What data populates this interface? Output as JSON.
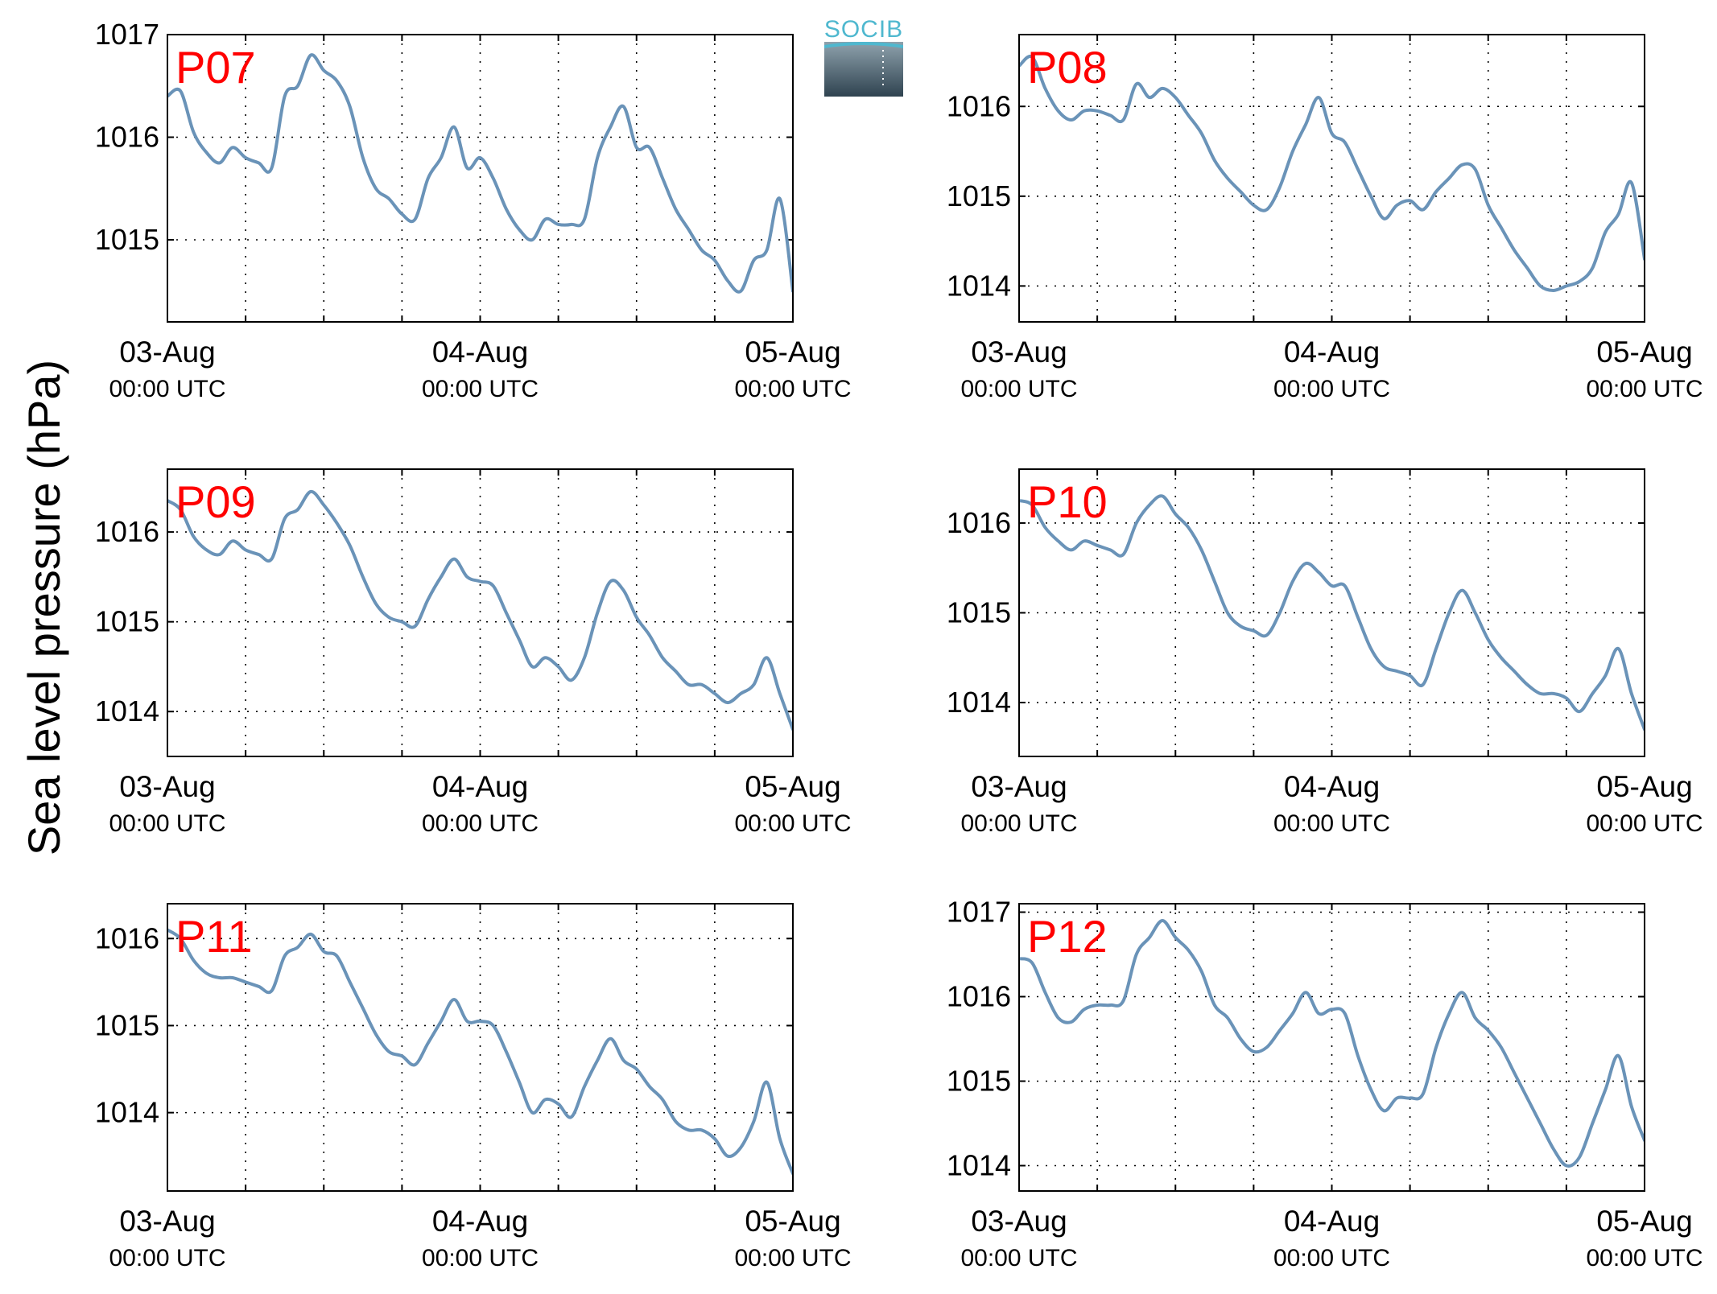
{
  "figure": {
    "ylabel": "Sea level pressure (hPa)",
    "logo_text": "SOCIB",
    "colors": {
      "series": "#6a93b8",
      "station_label": "#ff0000",
      "logo": "#4fb8cf"
    }
  },
  "chart_data": [
    {
      "type": "line",
      "station": "P07",
      "xlim": [
        "2014-08-03T00:00Z",
        "2014-08-05T00:00Z"
      ],
      "xticks": [
        {
          "label": "03-Aug",
          "sub": "00:00 UTC"
        },
        {
          "label": "04-Aug",
          "sub": "00:00 UTC"
        },
        {
          "label": "05-Aug",
          "sub": "00:00 UTC"
        }
      ],
      "ylim": [
        1014.2,
        1017.0
      ],
      "yticks": [
        1015,
        1016,
        1017
      ],
      "grid": true,
      "series": [
        {
          "x_hours": [
            0,
            1,
            2,
            3,
            4,
            5,
            6,
            7,
            8,
            9,
            10,
            11,
            12,
            13,
            14,
            15,
            16,
            17,
            18,
            19,
            20,
            21,
            22,
            23,
            24,
            25,
            26,
            27,
            28,
            29,
            30,
            31,
            32,
            33,
            34,
            35,
            36,
            37,
            38,
            39,
            40,
            41,
            42,
            43,
            44,
            45,
            46,
            47,
            48
          ],
          "values": [
            1016.4,
            1016.45,
            1016.05,
            1015.85,
            1015.75,
            1015.9,
            1015.8,
            1015.75,
            1015.7,
            1016.4,
            1016.5,
            1016.8,
            1016.65,
            1016.55,
            1016.3,
            1015.8,
            1015.5,
            1015.4,
            1015.25,
            1015.2,
            1015.6,
            1015.8,
            1016.1,
            1015.7,
            1015.8,
            1015.6,
            1015.3,
            1015.1,
            1015.0,
            1015.2,
            1015.15,
            1015.15,
            1015.2,
            1015.8,
            1016.1,
            1016.3,
            1015.9,
            1015.9,
            1015.6,
            1015.3,
            1015.1,
            1014.9,
            1014.8,
            1014.6,
            1014.5,
            1014.8,
            1014.9,
            1015.4,
            1014.5
          ]
        }
      ]
    },
    {
      "type": "line",
      "station": "P08",
      "xlim": [
        "2014-08-03T00:00Z",
        "2014-08-05T00:00Z"
      ],
      "xticks": [
        {
          "label": "03-Aug",
          "sub": "00:00 UTC"
        },
        {
          "label": "04-Aug",
          "sub": "00:00 UTC"
        },
        {
          "label": "05-Aug",
          "sub": "00:00 UTC"
        }
      ],
      "ylim": [
        1013.6,
        1016.8
      ],
      "yticks": [
        1014,
        1015,
        1016
      ],
      "grid": true,
      "series": [
        {
          "x_hours": [
            0,
            1,
            2,
            3,
            4,
            5,
            6,
            7,
            8,
            9,
            10,
            11,
            12,
            13,
            14,
            15,
            16,
            17,
            18,
            19,
            20,
            21,
            22,
            23,
            24,
            25,
            26,
            27,
            28,
            29,
            30,
            31,
            32,
            33,
            34,
            35,
            36,
            37,
            38,
            39,
            40,
            41,
            42,
            43,
            44,
            45,
            46,
            47,
            48
          ],
          "values": [
            1016.45,
            1016.55,
            1016.2,
            1015.95,
            1015.85,
            1015.95,
            1015.95,
            1015.9,
            1015.85,
            1016.25,
            1016.1,
            1016.2,
            1016.1,
            1015.9,
            1015.7,
            1015.4,
            1015.2,
            1015.05,
            1014.9,
            1014.85,
            1015.1,
            1015.5,
            1015.8,
            1016.1,
            1015.7,
            1015.6,
            1015.3,
            1015.0,
            1014.75,
            1014.9,
            1014.95,
            1014.85,
            1015.05,
            1015.2,
            1015.35,
            1015.3,
            1014.9,
            1014.65,
            1014.4,
            1014.2,
            1014.0,
            1013.95,
            1014.0,
            1014.05,
            1014.2,
            1014.6,
            1014.8,
            1015.15,
            1014.3
          ]
        }
      ]
    },
    {
      "type": "line",
      "station": "P09",
      "xlim": [
        "2014-08-03T00:00Z",
        "2014-08-05T00:00Z"
      ],
      "xticks": [
        {
          "label": "03-Aug",
          "sub": "00:00 UTC"
        },
        {
          "label": "04-Aug",
          "sub": "00:00 UTC"
        },
        {
          "label": "05-Aug",
          "sub": "00:00 UTC"
        }
      ],
      "ylim": [
        1013.5,
        1016.7
      ],
      "yticks": [
        1014,
        1015,
        1016
      ],
      "grid": true,
      "series": [
        {
          "x_hours": [
            0,
            1,
            2,
            3,
            4,
            5,
            6,
            7,
            8,
            9,
            10,
            11,
            12,
            13,
            14,
            15,
            16,
            17,
            18,
            19,
            20,
            21,
            22,
            23,
            24,
            25,
            26,
            27,
            28,
            29,
            30,
            31,
            32,
            33,
            34,
            35,
            36,
            37,
            38,
            39,
            40,
            41,
            42,
            43,
            44,
            45,
            46,
            47,
            48
          ],
          "values": [
            1016.35,
            1016.25,
            1015.95,
            1015.8,
            1015.75,
            1015.9,
            1015.8,
            1015.75,
            1015.7,
            1016.15,
            1016.25,
            1016.45,
            1016.3,
            1016.1,
            1015.85,
            1015.5,
            1015.2,
            1015.05,
            1015.0,
            1014.95,
            1015.25,
            1015.5,
            1015.7,
            1015.5,
            1015.45,
            1015.4,
            1015.1,
            1014.8,
            1014.5,
            1014.6,
            1014.5,
            1014.35,
            1014.6,
            1015.1,
            1015.45,
            1015.35,
            1015.05,
            1014.85,
            1014.6,
            1014.45,
            1014.3,
            1014.3,
            1014.2,
            1014.1,
            1014.2,
            1014.3,
            1014.6,
            1014.2,
            1013.8
          ]
        }
      ]
    },
    {
      "type": "line",
      "station": "P10",
      "xlim": [
        "2014-08-03T00:00Z",
        "2014-08-05T00:00Z"
      ],
      "xticks": [
        {
          "label": "03-Aug",
          "sub": "00:00 UTC"
        },
        {
          "label": "04-Aug",
          "sub": "00:00 UTC"
        },
        {
          "label": "05-Aug",
          "sub": "00:00 UTC"
        }
      ],
      "ylim": [
        1013.4,
        1016.6
      ],
      "yticks": [
        1014,
        1015,
        1016
      ],
      "grid": true,
      "series": [
        {
          "x_hours": [
            0,
            1,
            2,
            3,
            4,
            5,
            6,
            7,
            8,
            9,
            10,
            11,
            12,
            13,
            14,
            15,
            16,
            17,
            18,
            19,
            20,
            21,
            22,
            23,
            24,
            25,
            26,
            27,
            28,
            29,
            30,
            31,
            32,
            33,
            34,
            35,
            36,
            37,
            38,
            39,
            40,
            41,
            42,
            43,
            44,
            45,
            46,
            47,
            48
          ],
          "values": [
            1016.25,
            1016.2,
            1015.95,
            1015.8,
            1015.7,
            1015.8,
            1015.75,
            1015.7,
            1015.65,
            1016.0,
            1016.2,
            1016.3,
            1016.1,
            1015.95,
            1015.7,
            1015.35,
            1015.0,
            1014.85,
            1014.8,
            1014.75,
            1015.0,
            1015.35,
            1015.55,
            1015.45,
            1015.3,
            1015.3,
            1014.95,
            1014.6,
            1014.4,
            1014.35,
            1014.3,
            1014.2,
            1014.6,
            1015.0,
            1015.25,
            1015.0,
            1014.7,
            1014.5,
            1014.35,
            1014.2,
            1014.1,
            1014.1,
            1014.05,
            1013.9,
            1014.1,
            1014.3,
            1014.6,
            1014.1,
            1013.7
          ]
        }
      ]
    },
    {
      "type": "line",
      "station": "P11",
      "xlim": [
        "2014-08-03T00:00Z",
        "2014-08-05T00:00Z"
      ],
      "xticks": [
        {
          "label": "03-Aug",
          "sub": "00:00 UTC"
        },
        {
          "label": "04-Aug",
          "sub": "00:00 UTC"
        },
        {
          "label": "05-Aug",
          "sub": "00:00 UTC"
        }
      ],
      "ylim": [
        1013.1,
        1016.4
      ],
      "yticks": [
        1014,
        1015,
        1016
      ],
      "grid": true,
      "series": [
        {
          "x_hours": [
            0,
            1,
            2,
            3,
            4,
            5,
            6,
            7,
            8,
            9,
            10,
            11,
            12,
            13,
            14,
            15,
            16,
            17,
            18,
            19,
            20,
            21,
            22,
            23,
            24,
            25,
            26,
            27,
            28,
            29,
            30,
            31,
            32,
            33,
            34,
            35,
            36,
            37,
            38,
            39,
            40,
            41,
            42,
            43,
            44,
            45,
            46,
            47,
            48
          ],
          "values": [
            1016.1,
            1016.0,
            1015.75,
            1015.6,
            1015.55,
            1015.55,
            1015.5,
            1015.45,
            1015.4,
            1015.8,
            1015.9,
            1016.05,
            1015.85,
            1015.8,
            1015.5,
            1015.2,
            1014.9,
            1014.7,
            1014.65,
            1014.55,
            1014.8,
            1015.05,
            1015.3,
            1015.05,
            1015.05,
            1015.0,
            1014.7,
            1014.35,
            1014.0,
            1014.15,
            1014.1,
            1013.95,
            1014.3,
            1014.6,
            1014.85,
            1014.6,
            1014.5,
            1014.3,
            1014.15,
            1013.9,
            1013.8,
            1013.8,
            1013.7,
            1013.5,
            1013.6,
            1013.9,
            1014.35,
            1013.7,
            1013.3
          ]
        }
      ]
    },
    {
      "type": "line",
      "station": "P12",
      "xlim": [
        "2014-08-03T00:00Z",
        "2014-08-05T00:00Z"
      ],
      "xticks": [
        {
          "label": "03-Aug",
          "sub": "00:00 UTC"
        },
        {
          "label": "04-Aug",
          "sub": "00:00 UTC"
        },
        {
          "label": "05-Aug",
          "sub": "00:00 UTC"
        }
      ],
      "ylim": [
        1013.7,
        1017.1
      ],
      "yticks": [
        1014,
        1015,
        1016,
        1017
      ],
      "grid": true,
      "series": [
        {
          "x_hours": [
            0,
            1,
            2,
            3,
            4,
            5,
            6,
            7,
            8,
            9,
            10,
            11,
            12,
            13,
            14,
            15,
            16,
            17,
            18,
            19,
            20,
            21,
            22,
            23,
            24,
            25,
            26,
            27,
            28,
            29,
            30,
            31,
            32,
            33,
            34,
            35,
            36,
            37,
            38,
            39,
            40,
            41,
            42,
            43,
            44,
            45,
            46,
            47,
            48
          ],
          "values": [
            1016.45,
            1016.4,
            1016.05,
            1015.75,
            1015.7,
            1015.85,
            1015.9,
            1015.9,
            1015.95,
            1016.5,
            1016.7,
            1016.9,
            1016.7,
            1016.55,
            1016.3,
            1015.9,
            1015.75,
            1015.5,
            1015.35,
            1015.4,
            1015.6,
            1015.8,
            1016.05,
            1015.8,
            1015.85,
            1015.8,
            1015.3,
            1014.9,
            1014.65,
            1014.8,
            1014.8,
            1014.85,
            1015.4,
            1015.8,
            1016.05,
            1015.75,
            1015.6,
            1015.4,
            1015.1,
            1014.8,
            1014.5,
            1014.2,
            1014.0,
            1014.1,
            1014.5,
            1014.9,
            1015.3,
            1014.7,
            1014.3
          ]
        }
      ]
    }
  ]
}
